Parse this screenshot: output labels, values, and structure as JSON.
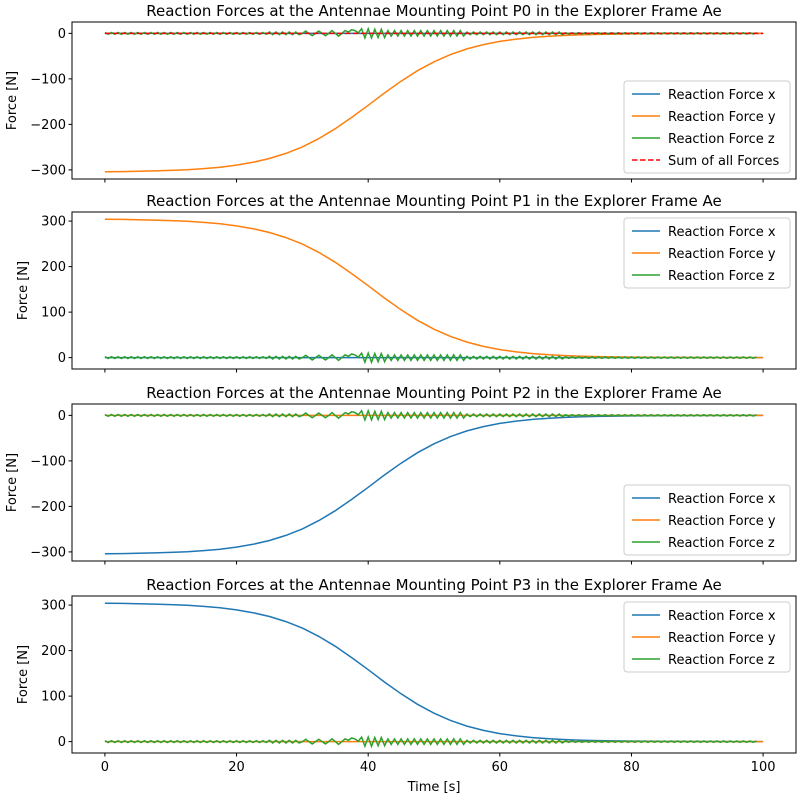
{
  "chart_data": [
    {
      "type": "line",
      "title": "Reaction Forces at the Antennae Mounting Point P0 in the Explorer Frame Ae",
      "ylabel": "Force [N]",
      "xlabel": "",
      "xlim": [
        -5,
        105
      ],
      "ylim": [
        -320,
        25
      ],
      "yticks": [
        0,
        -100,
        -200,
        -300
      ],
      "xticks": [
        0,
        20,
        40,
        60,
        80,
        100
      ],
      "show_xticklabels": false,
      "legend": "lower-right",
      "series": [
        {
          "name": "Reaction Force x",
          "color": "#1f77b4",
          "key": "zero"
        },
        {
          "name": "Reaction Force y",
          "color": "#ff7f0e",
          "key": "neg"
        },
        {
          "name": "Reaction Force z",
          "color": "#2ca02c",
          "key": "z"
        },
        {
          "name": "Sum of all Forces",
          "color": "#ff0000",
          "key": "zero",
          "dashed": true
        }
      ]
    },
    {
      "type": "line",
      "title": "Reaction Forces at the Antennae Mounting Point P1 in the Explorer Frame Ae",
      "ylabel": "Force [N]",
      "xlabel": "",
      "xlim": [
        -5,
        105
      ],
      "ylim": [
        -25,
        320
      ],
      "yticks": [
        0,
        100,
        200,
        300
      ],
      "xticks": [
        0,
        20,
        40,
        60,
        80,
        100
      ],
      "show_xticklabels": false,
      "legend": "upper-right",
      "series": [
        {
          "name": "Reaction Force x",
          "color": "#1f77b4",
          "key": "zero"
        },
        {
          "name": "Reaction Force y",
          "color": "#ff7f0e",
          "key": "pos"
        },
        {
          "name": "Reaction Force z",
          "color": "#2ca02c",
          "key": "z"
        }
      ]
    },
    {
      "type": "line",
      "title": "Reaction Forces at the Antennae Mounting Point P2 in the Explorer Frame Ae",
      "ylabel": "Force [N]",
      "xlabel": "",
      "xlim": [
        -5,
        105
      ],
      "ylim": [
        -320,
        25
      ],
      "yticks": [
        0,
        -100,
        -200,
        -300
      ],
      "xticks": [
        0,
        20,
        40,
        60,
        80,
        100
      ],
      "show_xticklabels": false,
      "legend": "lower-right",
      "series": [
        {
          "name": "Reaction Force x",
          "color": "#1f77b4",
          "key": "neg"
        },
        {
          "name": "Reaction Force y",
          "color": "#ff7f0e",
          "key": "zero"
        },
        {
          "name": "Reaction Force z",
          "color": "#2ca02c",
          "key": "z"
        }
      ]
    },
    {
      "type": "line",
      "title": "Reaction Forces at the Antennae Mounting Point P3 in the Explorer Frame Ae",
      "ylabel": "Force [N]",
      "xlabel": "Time [s]",
      "xlim": [
        -5,
        105
      ],
      "ylim": [
        -25,
        320
      ],
      "yticks": [
        0,
        100,
        200,
        300
      ],
      "xticks": [
        0,
        20,
        40,
        60,
        80,
        100
      ],
      "show_xticklabels": true,
      "legend": "upper-right",
      "series": [
        {
          "name": "Reaction Force x",
          "color": "#1f77b4",
          "key": "pos"
        },
        {
          "name": "Reaction Force y",
          "color": "#ff7f0e",
          "key": "zero"
        },
        {
          "name": "Reaction Force z",
          "color": "#2ca02c",
          "key": "z"
        }
      ]
    }
  ],
  "series_values": {
    "coarse_x": [
      0,
      2.5,
      5,
      7.5,
      10,
      12.5,
      15,
      17.5,
      20,
      22.5,
      25,
      27.5,
      30,
      32.5,
      35,
      37.5,
      40,
      42.5,
      45,
      47.5,
      50,
      52.5,
      55,
      57.5,
      60,
      62.5,
      65,
      67.5,
      70,
      72.5,
      75,
      77.5,
      80,
      82.5,
      85,
      87.5,
      90,
      92.5,
      95,
      97.5,
      100
    ],
    "pos": [
      304.1,
      303.7,
      303.1,
      302.3,
      301.1,
      299.5,
      297.2,
      294.0,
      289.5,
      283.3,
      275.0,
      263.8,
      249.4,
      231.3,
      209.5,
      184.7,
      158.0,
      130.8,
      105.1,
      82.0,
      62.4,
      46.6,
      34.2,
      24.7,
      17.7,
      12.6,
      8.9,
      6.3,
      4.4,
      3.2,
      2.2,
      1.6,
      1.1,
      0.8,
      0.5,
      0.4,
      0.3,
      0.2,
      0.1,
      0.1,
      0.1
    ],
    "neg": [
      -304.1,
      -303.7,
      -303.1,
      -302.3,
      -301.1,
      -299.5,
      -297.2,
      -294.0,
      -289.5,
      -283.3,
      -275.0,
      -263.8,
      -249.4,
      -231.3,
      -209.5,
      -184.7,
      -158.0,
      -130.8,
      -105.1,
      -82.0,
      -62.4,
      -46.6,
      -34.2,
      -24.7,
      -17.7,
      -12.6,
      -8.9,
      -6.3,
      -4.4,
      -3.2,
      -2.2,
      -1.6,
      -1.1,
      -0.8,
      -0.5,
      -0.4,
      -0.3,
      -0.2,
      -0.1,
      -0.1,
      -0.1
    ],
    "zero": [
      0,
      0,
      0,
      0,
      0,
      0,
      0,
      0,
      0,
      0,
      0,
      0,
      0,
      0,
      0,
      0,
      0,
      0,
      0,
      0,
      0,
      0,
      0,
      0,
      0,
      0,
      0,
      0,
      0,
      0,
      0,
      0,
      0,
      0,
      0,
      0,
      0,
      0,
      0,
      0,
      0
    ],
    "z_x": {
      "start": 0,
      "stop": 100,
      "step": 0.5
    },
    "z": [
      2,
      -2,
      2,
      -2,
      2,
      -2,
      2,
      -2,
      2,
      -2,
      2,
      -2,
      2,
      -2,
      2,
      -2,
      2,
      -2,
      2,
      -2,
      2,
      -2,
      2,
      -2,
      2,
      -2,
      2,
      -2,
      2,
      -2,
      2,
      -2,
      2,
      -2,
      2,
      -2,
      2,
      -2,
      2,
      -2,
      2,
      -2,
      2,
      -2,
      2,
      -2,
      2,
      -2,
      2,
      -2,
      3,
      -3,
      3,
      -3,
      3,
      -3,
      3,
      -3,
      3,
      -3,
      0,
      5,
      0,
      -5,
      0,
      5,
      0,
      -5,
      0,
      6,
      0,
      -6,
      0,
      6,
      3,
      8,
      6,
      1,
      10,
      -10,
      10,
      -10,
      9,
      -9,
      9,
      -9,
      6,
      -6,
      6,
      -6,
      6,
      -6,
      6,
      -6,
      6,
      -6,
      6,
      -6,
      6,
      -6,
      6,
      -6,
      6,
      -6,
      6,
      -6,
      6,
      -6,
      6,
      -6,
      3,
      -3,
      3,
      -3,
      3,
      -3,
      3,
      -3,
      3,
      -3,
      3,
      -3,
      3,
      -3,
      3,
      -3,
      3,
      -3,
      3,
      -3,
      3,
      -3,
      3,
      -3,
      3,
      -3,
      3,
      -3,
      3,
      -3,
      1.5,
      -1.5,
      1.5,
      -1.5,
      1.5,
      -1.5,
      1.5,
      -1.5,
      1.5,
      -1.5,
      1.5,
      -1.5,
      1.5,
      -1.5,
      1.5,
      -1.5,
      1.5,
      -1.5,
      1.5,
      -1.5,
      1.5,
      -1.5,
      1.5,
      -1.5,
      1.5,
      -1.5,
      1.5,
      -1.5,
      1.5,
      -1.5,
      1.5,
      -1.5,
      1.5,
      -1.5,
      1.5,
      -1.5,
      1.5,
      -1.5,
      1.5,
      -1.5,
      1.5,
      -1.5,
      1.5,
      -1.5,
      1.5,
      -1.5,
      1.5,
      -1.5,
      1.5,
      -1.5,
      1.5,
      -1.5,
      1.5,
      -1.5,
      1.5,
      -1.5,
      1.5,
      -1.5,
      1.5
    ]
  }
}
